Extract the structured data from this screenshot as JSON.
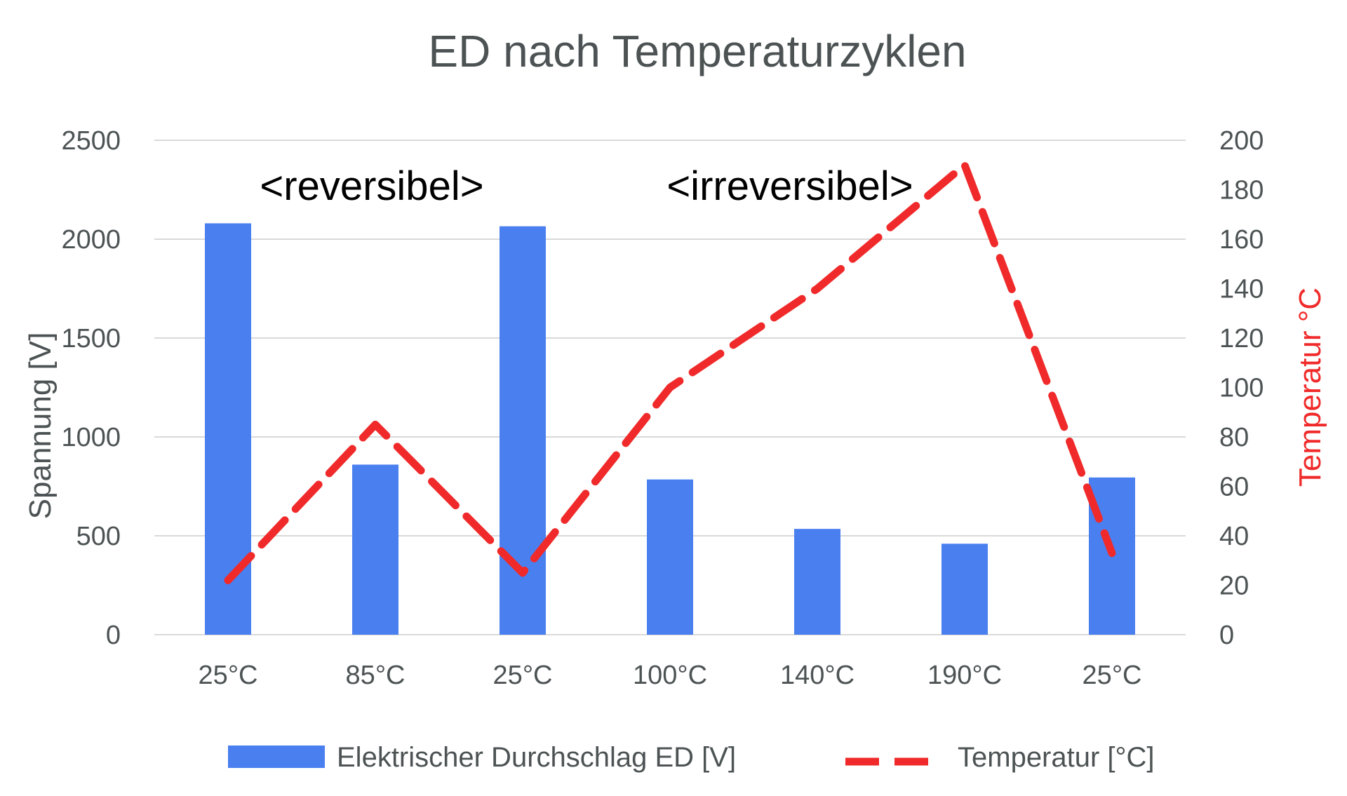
{
  "colors": {
    "bar": "#4a7ff0",
    "line": "#f02a2a",
    "grid": "#d9d9d9",
    "text": "#4d5354",
    "right_axis_label": "#f02a2a",
    "annotation": "#000000"
  },
  "chart_data": {
    "type": "bar",
    "title": "ED nach Temperaturzyklen",
    "categories": [
      "25°C",
      "85°C",
      "25°C",
      "100°C",
      "140°C",
      "190°C",
      "25°C"
    ],
    "ylabel": "Spannung [V]",
    "y2label": "Temperatur  °C",
    "ylim": [
      0,
      2500
    ],
    "y2lim": [
      0,
      200
    ],
    "yticks": [
      "0",
      "500",
      "1000",
      "1500",
      "2000",
      "2500"
    ],
    "y2ticks": [
      "0",
      "20",
      "40",
      "60",
      "80",
      "100",
      "120",
      "140",
      "160",
      "180",
      "200"
    ],
    "grid": true,
    "legend_position": "bottom",
    "series": [
      {
        "name": "Elektrischer Durchschlag ED [V]",
        "type": "bar",
        "axis": "left",
        "values": [
          2080,
          860,
          2065,
          785,
          535,
          460,
          795
        ]
      },
      {
        "name": "Temperatur [°C]",
        "type": "line",
        "style": "dashed",
        "axis": "right",
        "values": [
          22,
          85,
          25,
          100,
          140,
          190,
          33
        ]
      }
    ],
    "annotations": [
      "<reversibel>",
      "<irreversibel>"
    ]
  }
}
